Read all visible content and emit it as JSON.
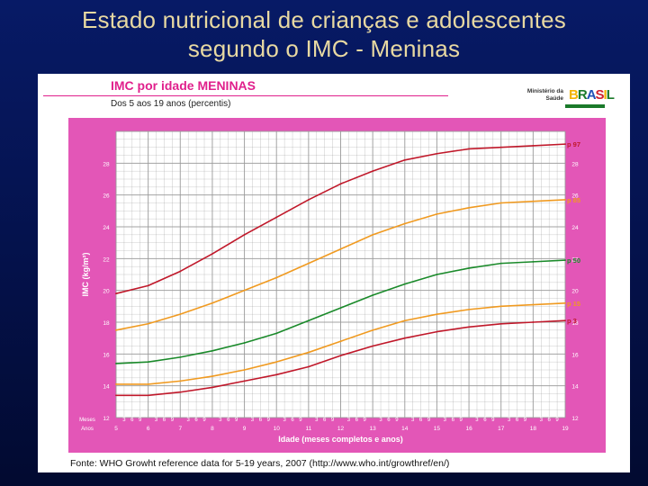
{
  "slide": {
    "title_line1": "Estado nutricional de crianças e adolescentes",
    "title_line2": "segundo o IMC - Meninas"
  },
  "card": {
    "chart_title": "IMC por idade MENINAS",
    "chart_subtitle": "Dos 5 aos 19 anos (percentis)",
    "logo_ministry": "Ministério da Saúde",
    "logo_brasil": "BRASIL",
    "source_note": "Fonte: WHO Growht reference data for 5-19 years, 2007 (http://www.who.int/growthref/en/)"
  },
  "colors": {
    "frame": "#e356b7",
    "grid": "#9a9a9a",
    "p97": "#c0182a",
    "p85": "#f09a20",
    "p50": "#1a8a2a",
    "p15": "#f09a20",
    "p3": "#c0182a"
  },
  "chart_data": {
    "type": "line",
    "title": "IMC por idade MENINAS",
    "subtitle": "Dos 5 aos 19 anos (percentis)",
    "xlabel": "Idade (meses completos e anos)",
    "ylabel": "IMC (kg/m²)",
    "xlim": [
      5,
      19
    ],
    "ylim": [
      12,
      30
    ],
    "x_ticks": [
      5,
      6,
      7,
      8,
      9,
      10,
      11,
      12,
      13,
      14,
      15,
      16,
      17,
      18,
      19
    ],
    "y_ticks": [
      12,
      14,
      16,
      18,
      20,
      22,
      24,
      26,
      28
    ],
    "month_tick_labels": [
      "3",
      "6",
      "9"
    ],
    "row_label_months": "Meses",
    "row_label_years": "Anos",
    "x": [
      5,
      6,
      7,
      8,
      9,
      10,
      11,
      12,
      13,
      14,
      15,
      16,
      17,
      18,
      19
    ],
    "series": [
      {
        "name": "p 97",
        "values": [
          19.8,
          20.3,
          21.2,
          22.3,
          23.5,
          24.6,
          25.7,
          26.7,
          27.5,
          28.2,
          28.6,
          28.9,
          29.0,
          29.1,
          29.2
        ]
      },
      {
        "name": "p 85",
        "values": [
          17.5,
          17.9,
          18.5,
          19.2,
          20.0,
          20.8,
          21.7,
          22.6,
          23.5,
          24.2,
          24.8,
          25.2,
          25.5,
          25.6,
          25.7
        ]
      },
      {
        "name": "p 50",
        "values": [
          15.4,
          15.5,
          15.8,
          16.2,
          16.7,
          17.3,
          18.1,
          18.9,
          19.7,
          20.4,
          21.0,
          21.4,
          21.7,
          21.8,
          21.9
        ]
      },
      {
        "name": "p 15",
        "values": [
          14.1,
          14.1,
          14.3,
          14.6,
          15.0,
          15.5,
          16.1,
          16.8,
          17.5,
          18.1,
          18.5,
          18.8,
          19.0,
          19.1,
          19.2
        ]
      },
      {
        "name": "p 3",
        "values": [
          13.4,
          13.4,
          13.6,
          13.9,
          14.3,
          14.7,
          15.2,
          15.9,
          16.5,
          17.0,
          17.4,
          17.7,
          17.9,
          18.0,
          18.1
        ]
      }
    ]
  }
}
